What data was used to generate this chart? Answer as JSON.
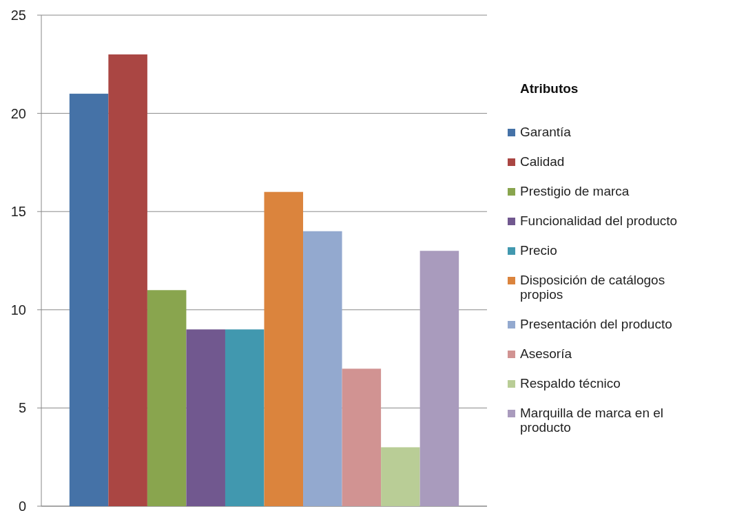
{
  "chart_data": {
    "type": "bar",
    "categories": [
      null
    ],
    "legend_title": "Atributos",
    "series": [
      {
        "name": "Garantía",
        "color": "#4572a7",
        "values": [
          21
        ]
      },
      {
        "name": "Calidad",
        "color": "#aa4643",
        "values": [
          23
        ]
      },
      {
        "name": "Prestigio de marca",
        "color": "#89a54e",
        "values": [
          11
        ]
      },
      {
        "name": "Funcionalidad del producto",
        "color": "#71588f",
        "values": [
          9
        ]
      },
      {
        "name": "Precio",
        "color": "#4198af",
        "values": [
          9
        ]
      },
      {
        "name": "Disposición de catálogos propios",
        "color": "#db843d",
        "values": [
          16
        ]
      },
      {
        "name": "Presentación del producto",
        "color": "#93a9cf",
        "values": [
          14
        ]
      },
      {
        "name": "Asesoría",
        "color": "#d19392",
        "values": [
          7
        ]
      },
      {
        "name": "Respaldo técnico",
        "color": "#b9cd96",
        "values": [
          3
        ]
      },
      {
        "name": "Marquilla de marca en el producto",
        "color": "#a99bbd",
        "values": [
          13
        ]
      }
    ],
    "ylim": [
      0,
      25
    ],
    "yticks": [
      0,
      5,
      10,
      15,
      20,
      25
    ],
    "grid": "y",
    "legend": "right",
    "tick_labels": "y"
  }
}
